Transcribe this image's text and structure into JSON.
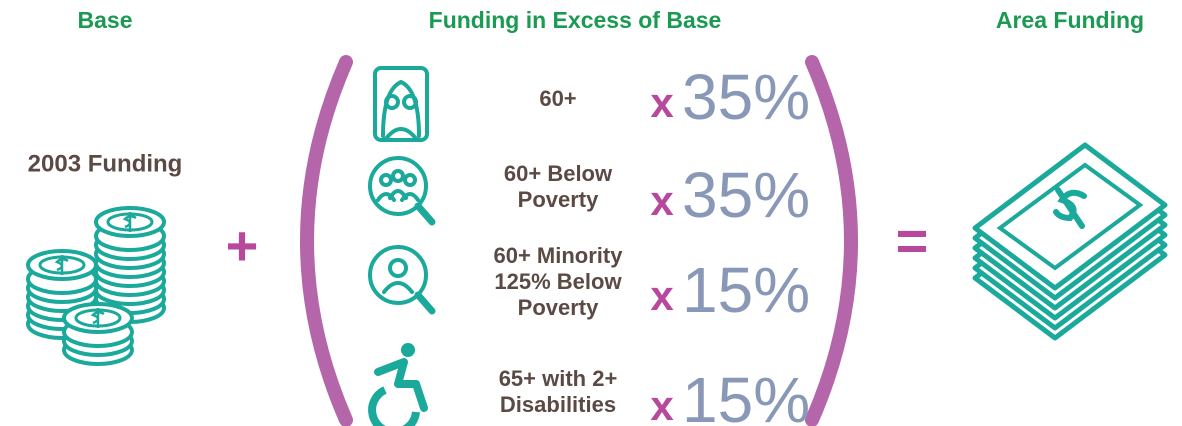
{
  "headers": {
    "base": "Base",
    "excess": "Funding in Excess of Base",
    "area": "Area Funding"
  },
  "base_label": "2003 Funding",
  "plus": "+",
  "equals": "=",
  "rows": [
    {
      "label": [
        "60+"
      ],
      "times": "x",
      "percent": "35%"
    },
    {
      "label": [
        "60+ Below",
        "Poverty"
      ],
      "times": "x",
      "percent": "35%"
    },
    {
      "label": [
        "60+ Minority",
        "125% Below",
        "Poverty"
      ],
      "times": "x",
      "percent": "15%"
    },
    {
      "label": [
        "65+ with 2+",
        "Disabilities"
      ],
      "times": "x",
      "percent": "15%"
    }
  ]
}
